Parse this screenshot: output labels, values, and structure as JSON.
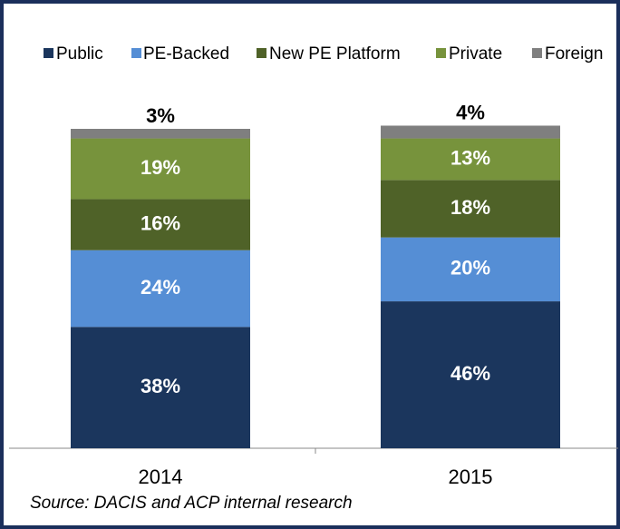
{
  "chart_data": {
    "type": "stacked_bar",
    "categories": [
      "2014",
      "2015"
    ],
    "series": [
      {
        "name": "Public",
        "color": "#1b365d",
        "values": [
          38,
          46
        ],
        "value_labels": [
          "38%",
          "46%"
        ]
      },
      {
        "name": "PE-Backed",
        "color": "#558ed5",
        "values": [
          24,
          20
        ],
        "value_labels": [
          "24%",
          "20%"
        ]
      },
      {
        "name": "New PE Platform",
        "color": "#4f6228",
        "values": [
          16,
          18
        ],
        "value_labels": [
          "16%",
          "18%"
        ]
      },
      {
        "name": "Private",
        "color": "#77933c",
        "values": [
          19,
          13
        ],
        "value_labels": [
          "19%",
          "13%"
        ]
      },
      {
        "name": "Foreign",
        "color": "#7f7f7f",
        "values": [
          3,
          4
        ],
        "value_labels": [
          "3%",
          "4%"
        ]
      }
    ],
    "ylim": [
      0,
      100
    ],
    "legend": "top",
    "source": "Source: DACIS and ACP internal research"
  }
}
